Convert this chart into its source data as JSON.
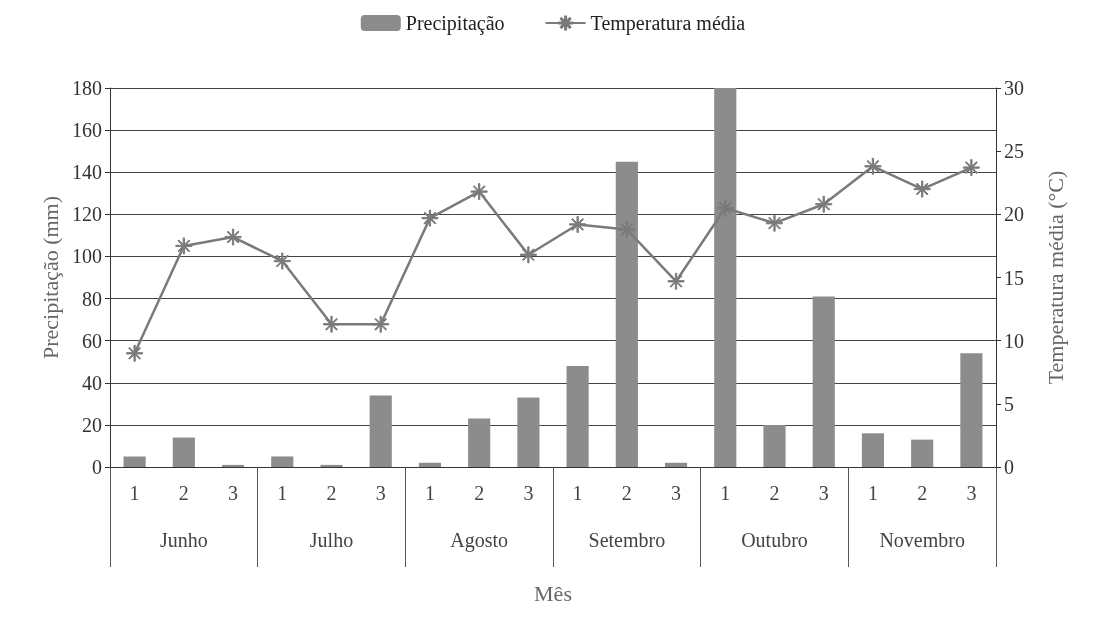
{
  "chart_data": {
    "type": "bar",
    "xlabel": "Mês",
    "ylabel": "Precipitação (mm)",
    "y2label": "Temperatura média (°C)",
    "categories": [
      "1",
      "2",
      "3",
      "1",
      "2",
      "3",
      "1",
      "2",
      "3",
      "1",
      "2",
      "3",
      "1",
      "2",
      "3",
      "1",
      "2",
      "3"
    ],
    "annotations": [
      "Junho",
      "Julho",
      "Agosto",
      "Setembro",
      "Outubro",
      "Novembro"
    ],
    "series": [
      {
        "name": "Precipitação",
        "color": "#8c8c8c",
        "values": [
          5,
          14,
          1,
          5,
          1,
          34,
          2,
          23,
          33,
          48,
          145,
          2,
          180,
          20,
          81,
          16,
          13,
          54
        ]
      },
      {
        "name": "Temperatura média",
        "type": "line",
        "axis": "y2",
        "color": "#7a7a7a",
        "marker": "star",
        "values": [
          9,
          17.5,
          18.2,
          16.3,
          11.3,
          11.3,
          19.7,
          21.8,
          16.8,
          19.2,
          18.8,
          14.7,
          20.5,
          19.3,
          20.8,
          23.8,
          22,
          23.7
        ]
      }
    ],
    "ylim": [
      0,
      180
    ],
    "yticks": [
      0,
      20,
      40,
      60,
      80,
      100,
      120,
      140,
      160,
      180
    ],
    "y2lim": [
      0,
      30
    ],
    "y2ticks": [
      0,
      5,
      10,
      15,
      20,
      25,
      30
    ],
    "grid": "y",
    "legend": "top"
  }
}
